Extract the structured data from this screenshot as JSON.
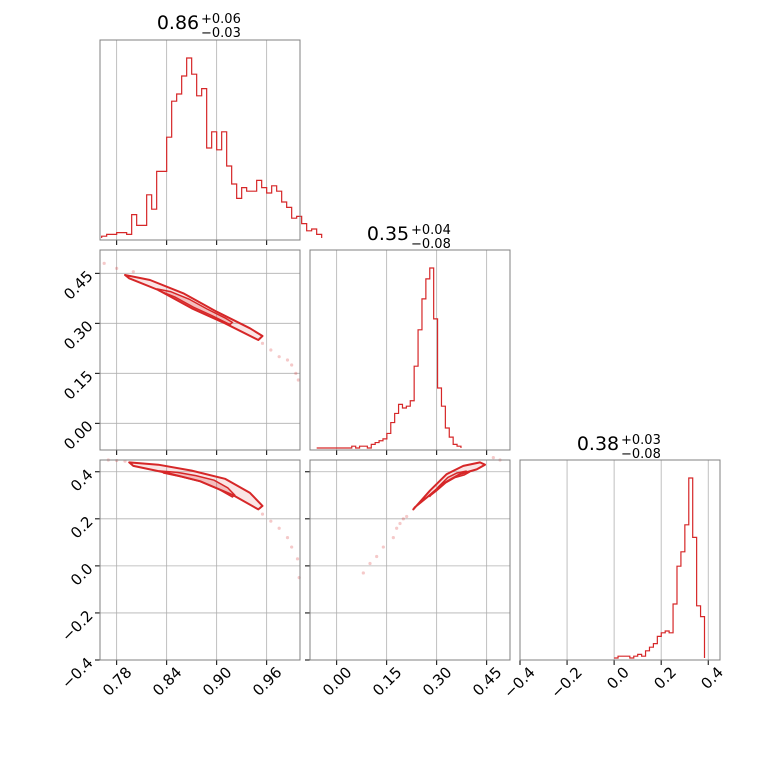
{
  "colors": {
    "series": "#d62728",
    "grid": "#b0b0b0",
    "frame": "#808080"
  },
  "titles": [
    {
      "value": "0.86",
      "plus": "+0.06",
      "minus": "−0.03"
    },
    {
      "value": "0.35",
      "plus": "+0.04",
      "minus": "−0.08"
    },
    {
      "value": "0.38",
      "plus": "+0.03",
      "minus": "−0.08"
    }
  ],
  "chart_data": {
    "type": "corner",
    "parameters": 3,
    "grid": true,
    "ranges": [
      [
        0.76,
        1.0
      ],
      [
        -0.08,
        0.52
      ],
      [
        -0.4,
        0.45
      ]
    ],
    "ticks": [
      [
        "0.78",
        "0.84",
        "0.90",
        "0.96"
      ],
      [
        "0.00",
        "0.15",
        "0.30",
        "0.45"
      ],
      [
        "−0.4",
        "−0.2",
        "0.0",
        "0.2",
        "0.4"
      ]
    ],
    "tick_values": [
      [
        0.78,
        0.84,
        0.9,
        0.96
      ],
      [
        0.0,
        0.15,
        0.3,
        0.45
      ],
      [
        -0.4,
        -0.2,
        0.0,
        0.2,
        0.4
      ]
    ],
    "hist1d": [
      {
        "param": 0,
        "x_start": 0.762,
        "bin_width": 0.006,
        "counts": [
          1,
          2,
          2,
          3,
          3,
          2,
          13,
          7,
          7,
          24,
          16,
          37,
          37,
          56,
          76,
          80,
          90,
          100,
          91,
          79,
          83,
          50,
          59,
          49,
          59,
          40,
          30,
          22,
          28,
          26,
          26,
          32,
          28,
          25,
          29,
          26,
          20,
          17,
          11,
          12,
          8,
          4,
          5,
          2
        ]
      },
      {
        "param": 1,
        "x_start": -0.06,
        "bin_width": 0.0117,
        "counts": [
          0,
          0,
          0,
          0,
          0,
          0,
          0,
          0,
          0,
          1,
          0,
          1,
          1,
          0,
          2,
          3,
          4,
          5,
          8,
          14,
          19,
          24,
          22,
          23,
          26,
          45,
          65,
          82,
          93,
          99,
          71,
          33,
          23,
          11,
          6,
          2,
          1
        ]
      },
      {
        "param": 2,
        "x_start": 0.0,
        "bin_width": 0.0167,
        "counts": [
          0,
          1,
          1,
          1,
          0,
          1,
          2,
          1,
          4,
          6,
          8,
          12,
          14,
          15,
          14,
          30,
          51,
          59,
          74,
          100,
          67,
          29,
          23
        ]
      }
    ],
    "hist2d": [
      {
        "x_param": 0,
        "y_param": 1,
        "contour_path": [
          [
            0.79,
            0.445
          ],
          [
            0.82,
            0.43
          ],
          [
            0.86,
            0.39
          ],
          [
            0.9,
            0.335
          ],
          [
            0.94,
            0.285
          ],
          [
            0.955,
            0.262
          ],
          [
            0.95,
            0.25
          ],
          [
            0.91,
            0.3
          ],
          [
            0.87,
            0.345
          ],
          [
            0.83,
            0.4
          ],
          [
            0.795,
            0.435
          ]
        ],
        "scatter": [
          [
            0.765,
            0.48
          ],
          [
            0.78,
            0.465
          ],
          [
            0.8,
            0.455
          ],
          [
            0.955,
            0.24
          ],
          [
            0.965,
            0.22
          ],
          [
            0.975,
            0.2
          ],
          [
            0.985,
            0.19
          ],
          [
            0.99,
            0.175
          ],
          [
            0.995,
            0.15
          ],
          [
            0.998,
            0.13
          ]
        ]
      },
      {
        "x_param": 0,
        "y_param": 2,
        "contour_path": [
          [
            0.795,
            0.44
          ],
          [
            0.83,
            0.43
          ],
          [
            0.87,
            0.405
          ],
          [
            0.91,
            0.37
          ],
          [
            0.94,
            0.31
          ],
          [
            0.955,
            0.255
          ],
          [
            0.95,
            0.24
          ],
          [
            0.92,
            0.3
          ],
          [
            0.88,
            0.36
          ],
          [
            0.84,
            0.395
          ],
          [
            0.8,
            0.425
          ]
        ],
        "scatter": [
          [
            0.77,
            0.45
          ],
          [
            0.78,
            0.448
          ],
          [
            0.79,
            0.445
          ],
          [
            0.955,
            0.22
          ],
          [
            0.965,
            0.19
          ],
          [
            0.975,
            0.16
          ],
          [
            0.985,
            0.12
          ],
          [
            0.99,
            0.08
          ],
          [
            0.997,
            0.03
          ],
          [
            0.999,
            -0.05
          ]
        ]
      },
      {
        "x_param": 1,
        "y_param": 2,
        "contour_path": [
          [
            0.23,
            0.24
          ],
          [
            0.28,
            0.32
          ],
          [
            0.33,
            0.39
          ],
          [
            0.38,
            0.425
          ],
          [
            0.43,
            0.44
          ],
          [
            0.445,
            0.43
          ],
          [
            0.42,
            0.41
          ],
          [
            0.37,
            0.39
          ],
          [
            0.32,
            0.35
          ],
          [
            0.27,
            0.29
          ],
          [
            0.235,
            0.25
          ]
        ],
        "scatter": [
          [
            0.18,
            0.16
          ],
          [
            0.19,
            0.18
          ],
          [
            0.2,
            0.2
          ],
          [
            0.21,
            0.21
          ],
          [
            0.17,
            0.12
          ],
          [
            0.14,
            0.08
          ],
          [
            0.12,
            0.04
          ],
          [
            0.1,
            0.01
          ],
          [
            0.08,
            -0.03
          ],
          [
            0.47,
            0.46
          ],
          [
            0.49,
            0.45
          ]
        ]
      }
    ]
  }
}
